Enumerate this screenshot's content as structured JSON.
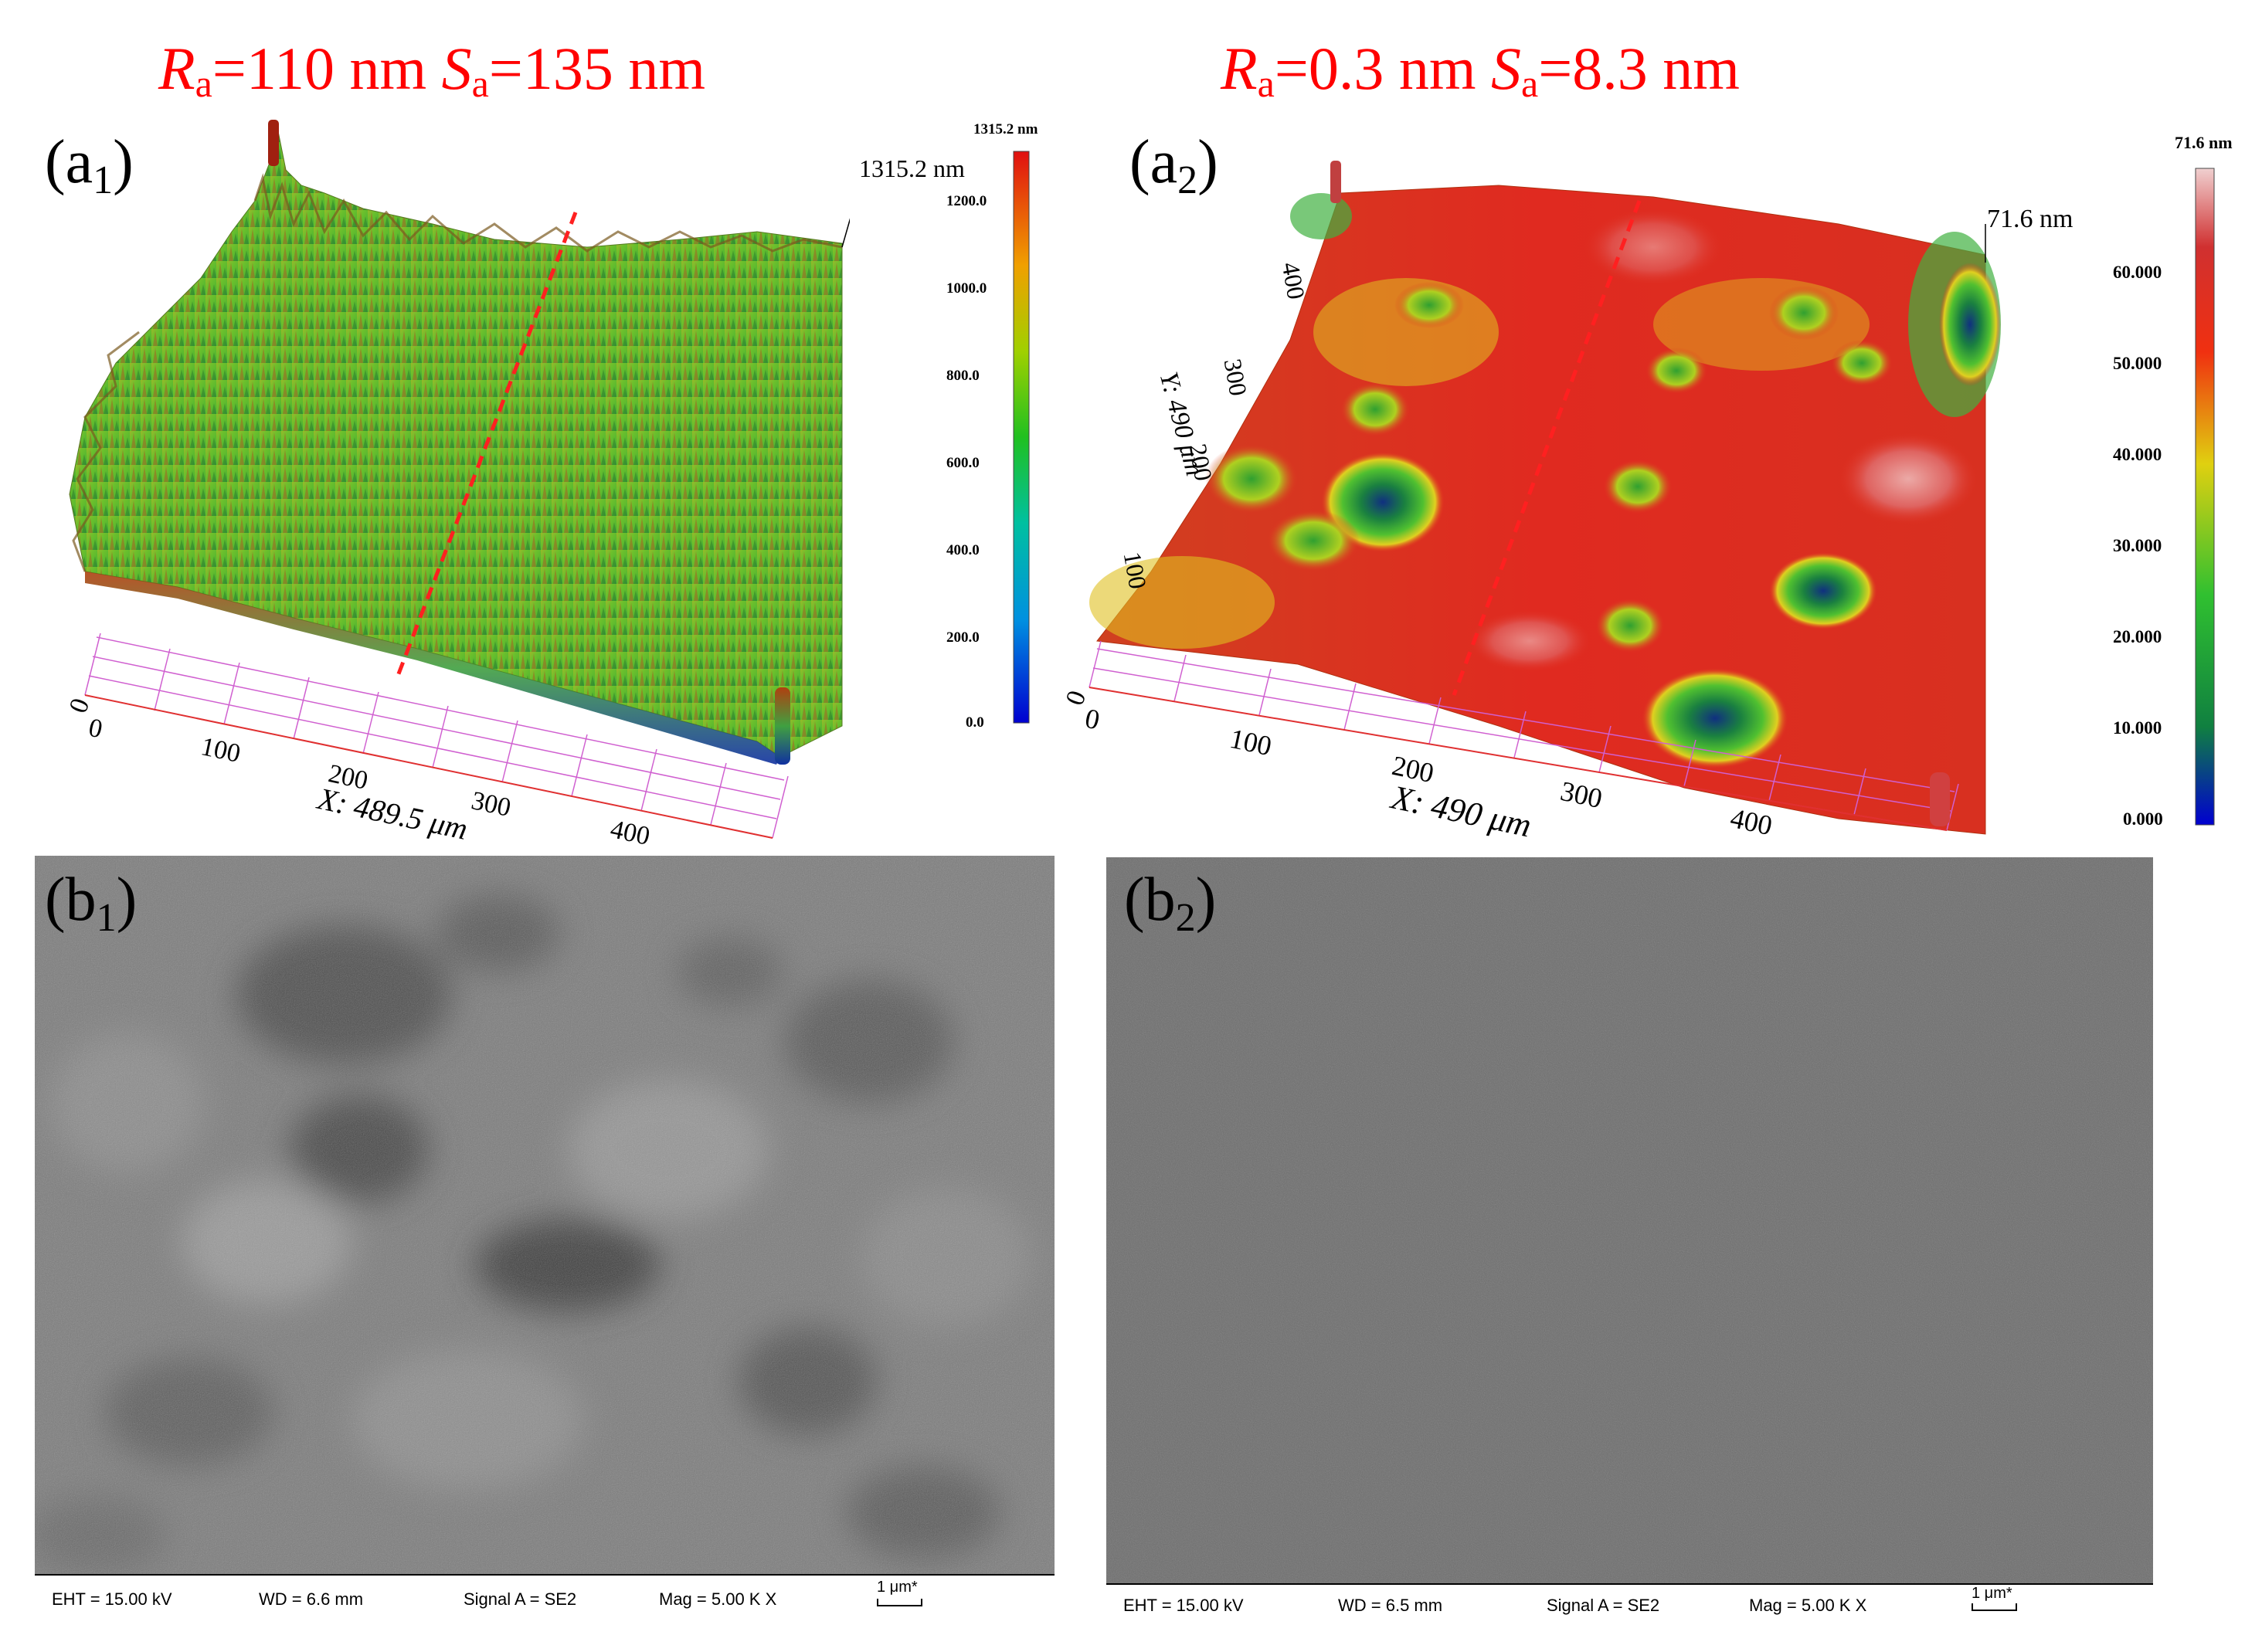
{
  "titles": {
    "left": {
      "r": "R",
      "r_sub": "a",
      "r_val": "=110 nm ",
      "s": "S",
      "s_sub": "a",
      "s_val": "=135 nm"
    },
    "right": {
      "r": "R",
      "r_sub": "a",
      "r_val": "=0.3 nm ",
      "s": "S",
      "s_sub": "a",
      "s_val": "=8.3 nm"
    }
  },
  "panels": {
    "a1": {
      "label": "(a",
      "label_sub": "1",
      "label_end": ")",
      "max_label": "1315.2 nm",
      "x_axis_label": "X: 489.5 μm",
      "x_ticks": [
        "0",
        "100",
        "200",
        "300",
        "400"
      ],
      "z_tick": "0",
      "colorbar": {
        "title": "1315.2 nm",
        "ticks": [
          "1200.0",
          "1000.0",
          "800.0",
          "600.0",
          "400.0",
          "200.0",
          "0.0"
        ],
        "range": [
          0,
          1315.2
        ]
      }
    },
    "a2": {
      "label": "(a",
      "label_sub": "2",
      "label_end": ")",
      "max_label": "71.6 nm",
      "x_axis_label": "X: 490 μm",
      "y_axis_label": "Y: 490 μm",
      "x_ticks": [
        "0",
        "100",
        "200",
        "300",
        "400"
      ],
      "y_ticks": [
        "100",
        "200",
        "300",
        "400"
      ],
      "z_tick": "0",
      "colorbar": {
        "title": "71.6 nm",
        "ticks": [
          "60.000",
          "50.000",
          "40.000",
          "30.000",
          "20.000",
          "10.000",
          "0.000"
        ],
        "range": [
          0,
          71.6
        ]
      }
    },
    "b1": {
      "label": "(b",
      "label_sub": "1",
      "label_end": ")",
      "info": {
        "eht": "EHT = 15.00 kV",
        "wd": "WD =  6.6 mm",
        "signal": "Signal A = SE2",
        "mag": "Mag =   5.00 K X",
        "scale": "1 μm*"
      }
    },
    "b2": {
      "label": "(b",
      "label_sub": "2",
      "label_end": ")",
      "info": {
        "eht": "EHT = 15.00 kV",
        "wd": "WD =  6.5 mm",
        "signal": "Signal A = SE2",
        "mag": "Mag =   5.00 K X",
        "scale": "1 μm*"
      }
    }
  },
  "colors": {
    "title_red": "#ff0000",
    "profile_line": "#ff2020",
    "grid": "#d060d0"
  }
}
